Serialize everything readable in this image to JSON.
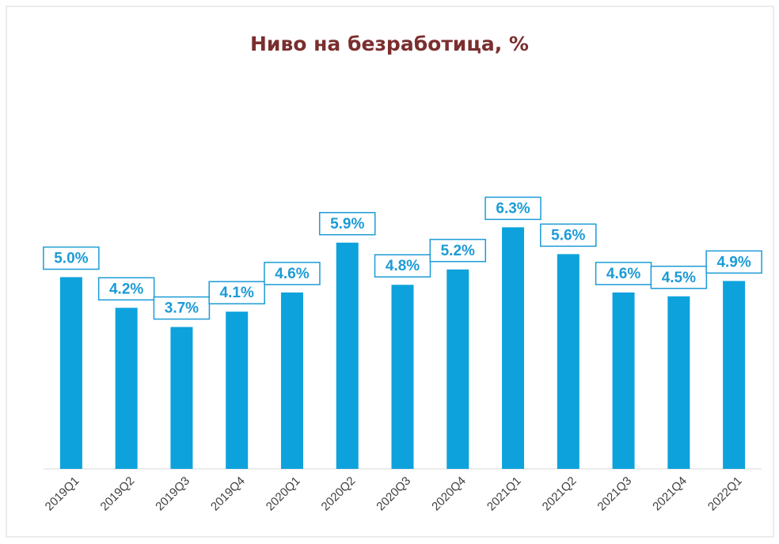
{
  "chart_data": {
    "type": "bar",
    "title": "Ниво на безработица, %",
    "categories": [
      "2019Q1",
      "2019Q2",
      "2019Q3",
      "2019Q4",
      "2020Q1",
      "2020Q2",
      "2020Q3",
      "2020Q4",
      "2021Q1",
      "2021Q2",
      "2021Q3",
      "2021Q4",
      "2022Q1"
    ],
    "values": [
      5.0,
      4.2,
      3.7,
      4.1,
      4.6,
      5.9,
      4.8,
      5.2,
      6.3,
      5.6,
      4.6,
      4.5,
      4.9
    ],
    "value_labels": [
      "5.0%",
      "4.2%",
      "3.7%",
      "4.1%",
      "4.6%",
      "5.9%",
      "4.8%",
      "5.2%",
      "6.3%",
      "5.6%",
      "4.6%",
      "4.5%",
      "4.9%"
    ],
    "color": "#0ea2dc",
    "ylim": [
      0,
      10
    ]
  }
}
